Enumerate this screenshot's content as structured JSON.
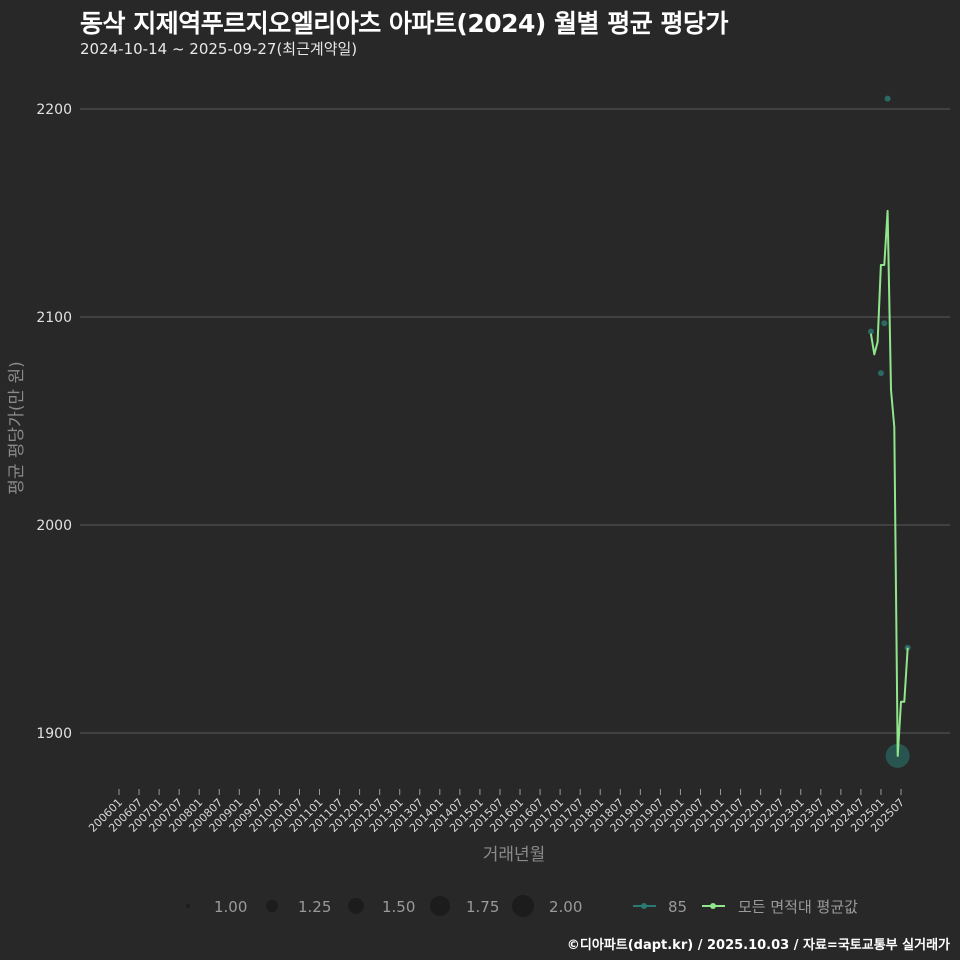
{
  "header": {
    "title": "동삭 지제역푸르지오엘리아츠 아파트(2024) 월별 평균 평당가",
    "subtitle": "2024-10-14 ~ 2025-09-27(최근계약일)"
  },
  "footer": {
    "caption": "©디아파트(dapt.kr) / 2025.10.03 / 자료=국토교통부 실거래가"
  },
  "colors": {
    "background": "#282828",
    "gridline": "#5a5a5a",
    "avg_line": "#90e68a",
    "series_85": "#2a7a72"
  },
  "chart_data": {
    "type": "line",
    "title": "동삭 지제역푸르지오엘리아츠 아파트(2024) 월별 평균 평당가",
    "subtitle": "2024-10-14 ~ 2025-09-27(최근계약일)",
    "xlabel": "거래년월",
    "ylabel": "평균 평당가(만 원)",
    "ylim": [
      1875,
      2215
    ],
    "yticks": [
      1900,
      2000,
      2100,
      2200
    ],
    "grid": true,
    "xticks": [
      "200601",
      "200607",
      "200701",
      "200707",
      "200801",
      "200807",
      "200901",
      "200907",
      "201001",
      "201007",
      "201101",
      "201107",
      "201201",
      "201207",
      "201301",
      "201307",
      "201401",
      "201407",
      "201501",
      "201507",
      "201601",
      "201607",
      "201701",
      "201707",
      "201801",
      "201807",
      "201901",
      "201907",
      "202001",
      "202007",
      "202101",
      "202107",
      "202201",
      "202207",
      "202301",
      "202307",
      "202401",
      "202407",
      "202501",
      "202507"
    ],
    "legend_position": "bottom",
    "size_legend": {
      "title": "",
      "values": [
        "1.00",
        "1.25",
        "1.50",
        "1.75",
        "2.00"
      ]
    },
    "series": [
      {
        "name": "모든 면적대 평균값",
        "type": "line",
        "x": [
          "202410",
          "202411",
          "202412",
          "202501",
          "202502",
          "202503",
          "202504",
          "202505",
          "202506",
          "202507",
          "202508",
          "202509"
        ],
        "values": [
          2092,
          2082,
          2088,
          2125,
          2125,
          2151,
          2065,
          2047,
          1889,
          1915,
          1915,
          1941
        ]
      },
      {
        "name": "85",
        "type": "scatter",
        "x": [
          "202410",
          "202501",
          "202502",
          "202503",
          "202506",
          "202509"
        ],
        "values": [
          2093,
          2073,
          2097,
          2205,
          1889,
          1941
        ],
        "sizes": [
          1.0,
          1.0,
          1.0,
          1.0,
          2.0,
          1.0
        ]
      }
    ]
  },
  "legend": {
    "sizes": [
      "1.00",
      "1.25",
      "1.50",
      "1.75",
      "2.00"
    ],
    "series": [
      "85",
      "모든 면적대 평균값"
    ]
  }
}
